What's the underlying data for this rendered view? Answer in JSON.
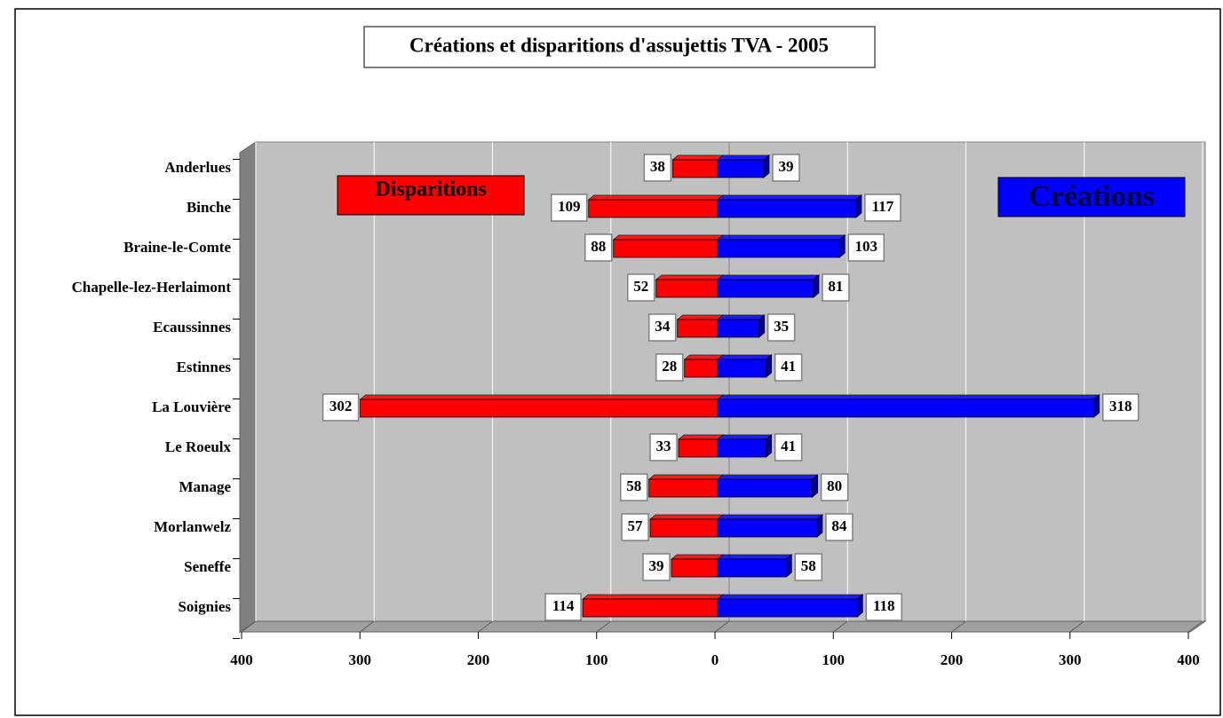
{
  "chart_data": {
    "type": "diverging-bar",
    "title": "Créations et disparitions d'assujettis TVA - 2005",
    "categories": [
      "Anderlues",
      "Binche",
      "Braine-le-Comte",
      "Chapelle-lez-Herlaimont",
      "Ecaussinnes",
      "Estinnes",
      "La Louvière",
      "Le Roeulx",
      "Manage",
      "Morlanwelz",
      "Seneffe",
      "Soignies"
    ],
    "series": [
      {
        "name": "Disparitions",
        "color": "#ff0000",
        "values": [
          -38,
          -109,
          -88,
          -52,
          -34,
          -28,
          -302,
          -33,
          -58,
          -57,
          -39,
          -114
        ],
        "value_labels": [
          "38",
          "109",
          "88",
          "52",
          "34",
          "28",
          "302",
          "33",
          "58",
          "57",
          "39",
          "114"
        ]
      },
      {
        "name": "Créations",
        "color": "#0000ff",
        "values": [
          39,
          117,
          103,
          81,
          35,
          41,
          318,
          41,
          80,
          84,
          58,
          118
        ]
      }
    ],
    "xlim": [
      -400,
      400
    ],
    "xticks": [
      {
        "value": -400,
        "label": "400"
      },
      {
        "value": -300,
        "label": "300"
      },
      {
        "value": -200,
        "label": "200"
      },
      {
        "value": -100,
        "label": "100"
      },
      0,
      100,
      200,
      300,
      400
    ],
    "grid": true
  }
}
